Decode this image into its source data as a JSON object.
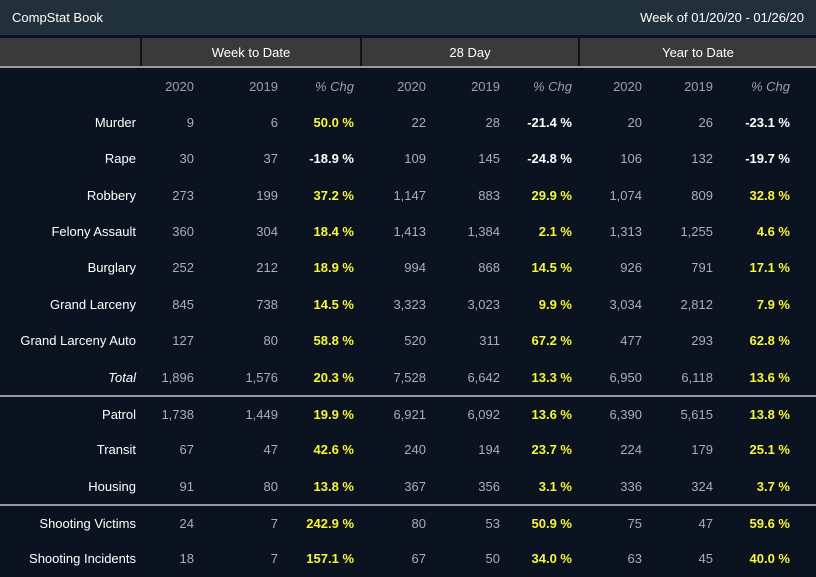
{
  "topbar": {
    "title": "CompStat Book",
    "week_range": "Week of 01/20/20 - 01/26/20"
  },
  "column_groups": [
    {
      "label": "Week to Date"
    },
    {
      "label": "28 Day"
    },
    {
      "label": "Year to Date"
    }
  ],
  "sub_headers": [
    "2020",
    "2019",
    "% Chg"
  ],
  "colors": {
    "topbar_bg": "#20313c",
    "band_bg": "#3a3a3a",
    "body_bg": "#0c1320",
    "label_text": "#ffffff",
    "number_text": "#a9aeb6",
    "header_text": "#9aa0a8",
    "separator": "#9a9a9a",
    "positive_pct": "#f6f63a",
    "negative_pct": "#ffffff"
  },
  "rows": [
    {
      "label": "Murder",
      "cells": [
        "9",
        "6",
        "50.0 %",
        "22",
        "28",
        "-21.4 %",
        "20",
        "26",
        "-23.1 %"
      ]
    },
    {
      "label": "Rape",
      "cells": [
        "30",
        "37",
        "-18.9 %",
        "109",
        "145",
        "-24.8 %",
        "106",
        "132",
        "-19.7 %"
      ]
    },
    {
      "label": "Robbery",
      "cells": [
        "273",
        "199",
        "37.2 %",
        "1,147",
        "883",
        "29.9 %",
        "1,074",
        "809",
        "32.8 %"
      ]
    },
    {
      "label": "Felony Assault",
      "cells": [
        "360",
        "304",
        "18.4 %",
        "1,413",
        "1,384",
        "2.1 %",
        "1,313",
        "1,255",
        "4.6 %"
      ]
    },
    {
      "label": "Burglary",
      "cells": [
        "252",
        "212",
        "18.9 %",
        "994",
        "868",
        "14.5 %",
        "926",
        "791",
        "17.1 %"
      ]
    },
    {
      "label": "Grand Larceny",
      "cells": [
        "845",
        "738",
        "14.5 %",
        "3,323",
        "3,023",
        "9.9 %",
        "3,034",
        "2,812",
        "7.9 %"
      ]
    },
    {
      "label": "Grand Larceny Auto",
      "cells": [
        "127",
        "80",
        "58.8 %",
        "520",
        "311",
        "67.2 %",
        "477",
        "293",
        "62.8 %"
      ]
    },
    {
      "label": "Total",
      "cells": [
        "1,896",
        "1,576",
        "20.3 %",
        "7,528",
        "6,642",
        "13.3 %",
        "6,950",
        "6,118",
        "13.6 %"
      ]
    },
    {
      "label": "Patrol",
      "cells": [
        "1,738",
        "1,449",
        "19.9 %",
        "6,921",
        "6,092",
        "13.6 %",
        "6,390",
        "5,615",
        "13.8 %"
      ]
    },
    {
      "label": "Transit",
      "cells": [
        "67",
        "47",
        "42.6 %",
        "240",
        "194",
        "23.7 %",
        "224",
        "179",
        "25.1 %"
      ]
    },
    {
      "label": "Housing",
      "cells": [
        "91",
        "80",
        "13.8 %",
        "367",
        "356",
        "3.1 %",
        "336",
        "324",
        "3.7 %"
      ]
    },
    {
      "label": "Shooting Victims",
      "cells": [
        "24",
        "7",
        "242.9 %",
        "80",
        "53",
        "50.9 %",
        "75",
        "47",
        "59.6 %"
      ]
    },
    {
      "label": "Shooting Incidents",
      "cells": [
        "18",
        "7",
        "157.1 %",
        "67",
        "50",
        "34.0 %",
        "63",
        "45",
        "40.0 %"
      ]
    }
  ]
}
